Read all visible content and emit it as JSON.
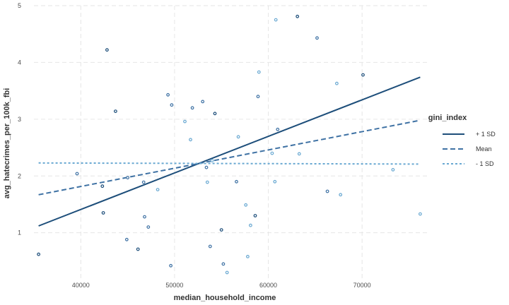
{
  "chart_data": {
    "type": "scatter",
    "title": "",
    "xlabel": "median_household_income",
    "ylabel": "avg_hatecrimes_per_100k_fbi",
    "xlim": [
      35000,
      77000
    ],
    "ylim": [
      0.2,
      5.0
    ],
    "x_ticks": [
      40000,
      50000,
      60000,
      70000
    ],
    "y_ticks": [
      1,
      2,
      3,
      4,
      5
    ],
    "grid": true,
    "legend": {
      "title": "gini_index",
      "position": "right",
      "entries": [
        {
          "label": "+ 1 SD",
          "color": "#1d4e7a",
          "dash": "solid"
        },
        {
          "label": "Mean",
          "color": "#3f72a4",
          "dash": "dashed"
        },
        {
          "label": "- 1 SD",
          "color": "#6aa9d2",
          "dash": "dotted"
        }
      ]
    },
    "points": [
      {
        "x": 35500,
        "y": 0.62,
        "color": "#1d4e7a"
      },
      {
        "x": 39600,
        "y": 2.04,
        "color": "#3f72a4"
      },
      {
        "x": 42300,
        "y": 1.82,
        "color": "#1d4e7a"
      },
      {
        "x": 42400,
        "y": 1.35,
        "color": "#1d4e7a"
      },
      {
        "x": 42800,
        "y": 4.22,
        "color": "#1d4e7a"
      },
      {
        "x": 43700,
        "y": 3.14,
        "color": "#1d4e7a"
      },
      {
        "x": 44900,
        "y": 0.88,
        "color": "#3f72a4"
      },
      {
        "x": 45000,
        "y": 1.97,
        "color": "#3f72a4"
      },
      {
        "x": 46100,
        "y": 0.71,
        "color": "#1d4e7a"
      },
      {
        "x": 46700,
        "y": 1.89,
        "color": "#3f72a4"
      },
      {
        "x": 46800,
        "y": 1.28,
        "color": "#3f72a4"
      },
      {
        "x": 47200,
        "y": 1.1,
        "color": "#3f72a4"
      },
      {
        "x": 48200,
        "y": 1.76,
        "color": "#6aa9d2"
      },
      {
        "x": 49300,
        "y": 3.43,
        "color": "#3f72a4"
      },
      {
        "x": 49600,
        "y": 0.42,
        "color": "#3f72a4"
      },
      {
        "x": 49700,
        "y": 3.25,
        "color": "#3f72a4"
      },
      {
        "x": 51100,
        "y": 2.96,
        "color": "#6aa9d2"
      },
      {
        "x": 51700,
        "y": 2.64,
        "color": "#6aa9d2"
      },
      {
        "x": 51900,
        "y": 3.2,
        "color": "#3f72a4"
      },
      {
        "x": 53000,
        "y": 3.31,
        "color": "#3f72a4"
      },
      {
        "x": 53400,
        "y": 2.15,
        "color": "#3f72a4"
      },
      {
        "x": 53500,
        "y": 1.89,
        "color": "#6aa9d2"
      },
      {
        "x": 53800,
        "y": 0.76,
        "color": "#3f72a4"
      },
      {
        "x": 54000,
        "y": 2.27,
        "color": "#6aa9d2"
      },
      {
        "x": 54300,
        "y": 3.1,
        "color": "#1d4e7a"
      },
      {
        "x": 55000,
        "y": 1.05,
        "color": "#1d4e7a"
      },
      {
        "x": 55200,
        "y": 0.45,
        "color": "#3f72a4"
      },
      {
        "x": 55600,
        "y": 0.3,
        "color": "#6aa9d2"
      },
      {
        "x": 56600,
        "y": 1.9,
        "color": "#3f72a4"
      },
      {
        "x": 56800,
        "y": 2.69,
        "color": "#6aa9d2"
      },
      {
        "x": 57600,
        "y": 1.49,
        "color": "#6aa9d2"
      },
      {
        "x": 57800,
        "y": 0.58,
        "color": "#6aa9d2"
      },
      {
        "x": 58100,
        "y": 1.13,
        "color": "#6aa9d2"
      },
      {
        "x": 58600,
        "y": 1.3,
        "color": "#1d4e7a"
      },
      {
        "x": 58900,
        "y": 3.4,
        "color": "#3f72a4"
      },
      {
        "x": 59000,
        "y": 3.83,
        "color": "#6aa9d2"
      },
      {
        "x": 60400,
        "y": 2.4,
        "color": "#6aa9d2"
      },
      {
        "x": 60700,
        "y": 1.9,
        "color": "#6aa9d2"
      },
      {
        "x": 60800,
        "y": 4.75,
        "color": "#6aa9d2"
      },
      {
        "x": 61000,
        "y": 2.82,
        "color": "#3f72a4"
      },
      {
        "x": 63100,
        "y": 4.81,
        "color": "#1d4e7a"
      },
      {
        "x": 63300,
        "y": 2.39,
        "color": "#6aa9d2"
      },
      {
        "x": 65200,
        "y": 4.43,
        "color": "#3f72a4"
      },
      {
        "x": 66300,
        "y": 1.73,
        "color": "#3f72a4"
      },
      {
        "x": 67300,
        "y": 3.63,
        "color": "#6aa9d2"
      },
      {
        "x": 67700,
        "y": 1.67,
        "color": "#6aa9d2"
      },
      {
        "x": 70100,
        "y": 3.78,
        "color": "#1d4e7a"
      },
      {
        "x": 73300,
        "y": 2.11,
        "color": "#6aa9d2"
      },
      {
        "x": 76200,
        "y": 1.33,
        "color": "#6aa9d2"
      }
    ],
    "series": [
      {
        "name": "+ 1 SD",
        "color": "#1d4e7a",
        "dash": "solid",
        "x": [
          35500,
          76200
        ],
        "y": [
          1.12,
          3.74
        ]
      },
      {
        "name": "Mean",
        "color": "#3f72a4",
        "dash": "dashed",
        "x": [
          35500,
          76200
        ],
        "y": [
          1.67,
          2.98
        ]
      },
      {
        "name": "- 1 SD",
        "color": "#6aa9d2",
        "dash": "dotted",
        "x": [
          35500,
          76200
        ],
        "y": [
          2.23,
          2.21
        ]
      }
    ]
  }
}
